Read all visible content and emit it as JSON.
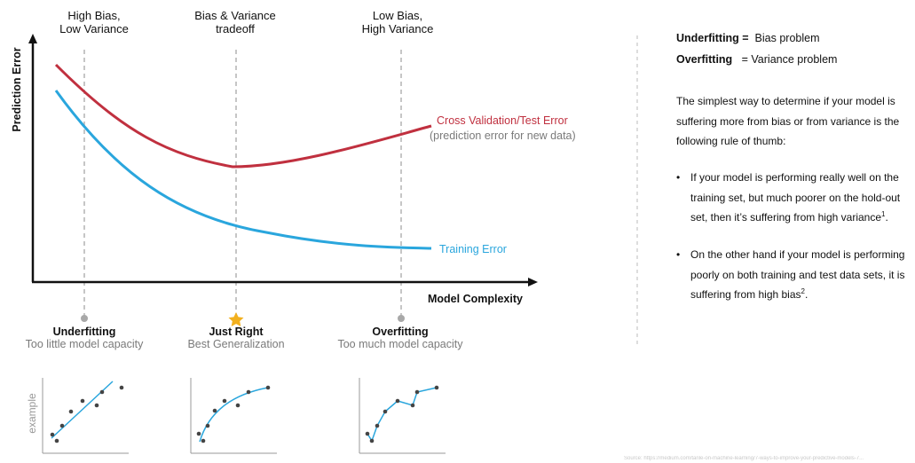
{
  "headers": {
    "left": [
      "High Bias,",
      "Low Variance"
    ],
    "middle": [
      "Bias & Variance",
      "tradeoff"
    ],
    "right": [
      "Low Bias,",
      "High Variance"
    ]
  },
  "axes": {
    "y_label": "Prediction Error",
    "x_label": "Model Complexity"
  },
  "curves": {
    "test": {
      "label": "Cross Validation/Test Error",
      "sublabel": "(prediction error for new data)",
      "color": "#c0303f"
    },
    "train": {
      "label": "Training Error",
      "color": "#2aa6dd"
    }
  },
  "regions": [
    {
      "title": "Underfitting",
      "subtitle": "Too little model capacity",
      "marker": "gray-dot"
    },
    {
      "title": "Just Right",
      "subtitle": "Best Generalization",
      "marker": "star-icon"
    },
    {
      "title": "Overfitting",
      "subtitle": "Too much model capacity",
      "marker": "gray-dot"
    }
  ],
  "examples_label": "example",
  "colors": {
    "test": "#c0303f",
    "train": "#2aa6dd",
    "guide": "#a8a8a8",
    "star": "#f2b01e",
    "point": "#444444"
  },
  "side": {
    "line1_bold": "Underfitting =",
    "line1_rest": "Bias problem",
    "line2_bold": "Overfitting",
    "line2_rest": "=  Variance problem",
    "intro": "The simplest way to determine if your model is suffering more from bias or from variance is the following rule of thumb:",
    "bullet1": "If your model is performing really well on the training set, but much poorer on the hold-out set, then it’s suffering from high variance",
    "bullet1_sup": "1",
    "bullet2": "On the other hand if your model is performing poorly on both training and test data sets, it is suffering from high bias",
    "bullet2_sup": "2",
    "bullet_symbol": "•",
    "period": "."
  },
  "source": "Source: https://medium.com/tanle-on-machine-learning/7-ways-to-improve-your-predictive-models-7..."
}
